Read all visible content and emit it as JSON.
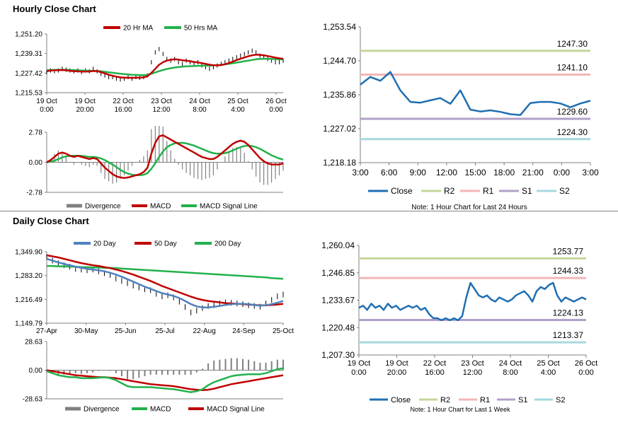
{
  "sections": {
    "hourly_title": "Hourly Close Chart",
    "daily_title": "Daily Close Chart"
  },
  "chart_data": [
    {
      "id": "hourly_price",
      "type": "line",
      "legend": [
        "20 Hr MA",
        "50 Hrs MA"
      ],
      "colors": {
        "ma20": "#c00000",
        "ma50": "#22b14c",
        "price": "#000000"
      },
      "y_ticks": [
        "1,251.20",
        "1,239.31",
        "1,227.42",
        "1,215.53"
      ],
      "ylim": [
        1215.53,
        1251.2
      ],
      "x_ticks": [
        [
          "19 Oct",
          "0:00"
        ],
        [
          "19 Oct",
          "20:00"
        ],
        [
          "22 Oct",
          "16:00"
        ],
        [
          "23 Oct",
          "12:00"
        ],
        [
          "24 Oct",
          "8:00"
        ],
        [
          "25 Oct",
          "4:00"
        ],
        [
          "26 Oct",
          "0:00"
        ]
      ],
      "price": [
        1228,
        1229,
        1228.5,
        1229,
        1230,
        1229.5,
        1229,
        1228.5,
        1229,
        1228,
        1229,
        1228.5,
        1230,
        1228.5,
        1227,
        1226,
        1225,
        1225,
        1224,
        1223.5,
        1224,
        1225,
        1224,
        1225,
        1224.5,
        1225,
        1226,
        1234,
        1240,
        1242,
        1239,
        1236,
        1235,
        1236,
        1234,
        1233,
        1235,
        1234,
        1233,
        1234,
        1232,
        1231,
        1230,
        1231,
        1232,
        1233,
        1234,
        1235,
        1236,
        1237,
        1238,
        1239,
        1240,
        1241,
        1240,
        1238,
        1237,
        1236,
        1235,
        1234,
        1234,
        1235
      ],
      "ma20": [
        1228.5,
        1229,
        1229.2,
        1229.2,
        1229.3,
        1229.1,
        1228.8,
        1228.6,
        1228.5,
        1228.3,
        1228.4,
        1228.4,
        1228.7,
        1228.6,
        1228,
        1227.2,
        1226.4,
        1225.8,
        1225.2,
        1224.8,
        1224.6,
        1224.6,
        1224.5,
        1224.6,
        1224.6,
        1224.8,
        1225.5,
        1227.5,
        1230,
        1232.5,
        1234,
        1235,
        1235.5,
        1235.8,
        1235.6,
        1235.2,
        1235,
        1234.6,
        1234.2,
        1233.9,
        1233.5,
        1233,
        1232.5,
        1232.2,
        1232.1,
        1232.3,
        1232.8,
        1233.5,
        1234.4,
        1235.3,
        1236.1,
        1236.9,
        1237.6,
        1238.2,
        1238.6,
        1238.5,
        1238.2,
        1237.8,
        1237.3,
        1236.8,
        1236.4,
        1236.1
      ],
      "ma50": [
        1229.2,
        1229.3,
        1229.3,
        1229.4,
        1229.4,
        1229.4,
        1229.3,
        1229.2,
        1229.1,
        1229,
        1228.9,
        1228.8,
        1228.8,
        1228.7,
        1228.5,
        1228.2,
        1227.9,
        1227.6,
        1227.3,
        1227,
        1226.8,
        1226.6,
        1226.4,
        1226.3,
        1226.2,
        1226.2,
        1226.4,
        1227,
        1227.8,
        1228.6,
        1229.3,
        1229.9,
        1230.4,
        1230.8,
        1231.1,
        1231.3,
        1231.5,
        1231.6,
        1231.7,
        1231.8,
        1231.9,
        1232,
        1232,
        1232.1,
        1232.2,
        1232.4,
        1232.7,
        1233,
        1233.4,
        1233.8,
        1234.2,
        1234.6,
        1235,
        1235.4,
        1235.8,
        1236,
        1236.1,
        1236.1,
        1236,
        1235.9,
        1235.8,
        1235.7
      ]
    },
    {
      "id": "hourly_macd",
      "type": "line",
      "legend": [
        "Divergence",
        "MACD",
        "MACD Signal Line"
      ],
      "colors": {
        "divergence": "#808080",
        "macd": "#c00000",
        "signal": "#22b14c"
      },
      "y_ticks": [
        "2.78",
        "0.00",
        "-2.78"
      ],
      "ylim": [
        -2.78,
        2.78
      ],
      "macd": [
        0,
        0.2,
        0.5,
        0.8,
        0.9,
        0.8,
        0.6,
        0.5,
        0.6,
        0.5,
        0.4,
        0.3,
        0.4,
        0.3,
        -0.1,
        -0.5,
        -0.8,
        -1.1,
        -1.3,
        -1.4,
        -1.45,
        -1.4,
        -1.3,
        -1.2,
        -1.1,
        -0.9,
        -0.5,
        0.8,
        1.8,
        2.4,
        2.5,
        2.3,
        2.1,
        1.9,
        1.7,
        1.5,
        1.3,
        1.1,
        0.9,
        0.7,
        0.5,
        0.4,
        0.3,
        0.3,
        0.5,
        0.8,
        1.1,
        1.4,
        1.7,
        1.9,
        2.0,
        1.9,
        1.6,
        1.2,
        0.8,
        0.4,
        0.1,
        -0.1,
        -0.2,
        -0.2,
        -0.2,
        -0.1
      ],
      "signal": [
        0,
        0.05,
        0.15,
        0.3,
        0.45,
        0.55,
        0.6,
        0.6,
        0.6,
        0.6,
        0.55,
        0.5,
        0.5,
        0.45,
        0.35,
        0.2,
        0,
        -0.2,
        -0.45,
        -0.7,
        -0.9,
        -1.05,
        -1.15,
        -1.2,
        -1.2,
        -1.15,
        -1.0,
        -0.6,
        -0.1,
        0.5,
        1.0,
        1.4,
        1.6,
        1.75,
        1.8,
        1.8,
        1.75,
        1.65,
        1.55,
        1.4,
        1.25,
        1.1,
        0.95,
        0.85,
        0.8,
        0.8,
        0.85,
        0.95,
        1.1,
        1.25,
        1.4,
        1.5,
        1.55,
        1.5,
        1.4,
        1.25,
        1.05,
        0.85,
        0.65,
        0.5,
        0.35,
        0.25
      ]
    },
    {
      "id": "hourly_levels",
      "type": "line",
      "title_note": "Note: 1 Hour Chart for Last 24 Hours",
      "legend": [
        "Close",
        "R2",
        "R1",
        "S1",
        "S2"
      ],
      "colors": {
        "close": "#1f6fb2",
        "r2": "#c4d79b",
        "r1": "#f2b6b6",
        "s1": "#b1a0c7",
        "s2": "#a7d8de"
      },
      "y_ticks": [
        "1,253.54",
        "1,244.70",
        "1,235.86",
        "1,227.02",
        "1,218.18"
      ],
      "ylim": [
        1218.18,
        1253.54
      ],
      "x_ticks": [
        "3:00",
        "6:00",
        "9:00",
        "12:00",
        "15:00",
        "18:00",
        "21:00",
        "0:00",
        "3:00"
      ],
      "levels": {
        "r2": 1247.3,
        "r1": 1241.1,
        "s1": 1229.6,
        "s2": 1224.3
      },
      "level_labels": {
        "r2": "1247.30",
        "r1": "1241.10",
        "s1": "1229.60",
        "s2": "1224.30"
      },
      "close": [
        1238.5,
        1240.5,
        1239.5,
        1241.8,
        1237.0,
        1234.0,
        1233.8,
        1234.4,
        1235.0,
        1233.5,
        1237.0,
        1232.0,
        1231.5,
        1231.8,
        1231.4,
        1230.8,
        1230.6,
        1233.7,
        1234.0,
        1234.0,
        1233.6,
        1232.6,
        1233.6,
        1234.3
      ]
    },
    {
      "id": "daily_price",
      "type": "line",
      "legend": [
        "20 Day",
        "50 Day",
        "200 Day"
      ],
      "colors": {
        "d20": "#4f81bd",
        "d50": "#c00000",
        "d200": "#22b14c",
        "price": "#000000"
      },
      "y_ticks": [
        "1,349.90",
        "1,283.20",
        "1,216.49",
        "1,149.79"
      ],
      "ylim": [
        1149.79,
        1349.9
      ],
      "x_ticks": [
        "27-Apr",
        "30-May",
        "25-Jun",
        "25-Jul",
        "22-Aug",
        "24-Sep",
        "25-Oct"
      ],
      "price": [
        1335,
        1325,
        1318,
        1312,
        1308,
        1302,
        1300,
        1298,
        1300,
        1295,
        1290,
        1285,
        1275,
        1268,
        1262,
        1255,
        1250,
        1245,
        1242,
        1232,
        1225,
        1228,
        1222,
        1210,
        1195,
        1180,
        1185,
        1192,
        1198,
        1200,
        1205,
        1208,
        1207,
        1205,
        1203,
        1200,
        1198,
        1196,
        1205,
        1215,
        1225,
        1230
      ],
      "d20": [
        1330,
        1325,
        1320,
        1316,
        1312,
        1308,
        1305,
        1302,
        1300,
        1298,
        1295,
        1291,
        1286,
        1280,
        1273,
        1266,
        1259,
        1252,
        1246,
        1240,
        1234,
        1230,
        1226,
        1220,
        1212,
        1203,
        1197,
        1194,
        1194,
        1196,
        1198,
        1201,
        1203,
        1204,
        1204,
        1203,
        1201,
        1199,
        1200,
        1203,
        1207,
        1212
      ],
      "d50": [
        1340,
        1337,
        1334,
        1330,
        1326,
        1322,
        1318,
        1315,
        1312,
        1310,
        1307,
        1304,
        1300,
        1296,
        1291,
        1286,
        1280,
        1274,
        1268,
        1261,
        1254,
        1248,
        1242,
        1236,
        1230,
        1224,
        1219,
        1215,
        1212,
        1210,
        1208,
        1206,
        1205,
        1204,
        1203,
        1202,
        1201,
        1200,
        1200,
        1201,
        1202,
        1204
      ],
      "d200": [
        1310,
        1310,
        1309,
        1309,
        1308,
        1308,
        1307,
        1307,
        1306,
        1306,
        1305,
        1305,
        1304,
        1303,
        1302,
        1301,
        1300,
        1299,
        1298,
        1297,
        1296,
        1295,
        1294,
        1293,
        1292,
        1291,
        1290,
        1289,
        1288,
        1287,
        1286,
        1285,
        1284,
        1283,
        1282,
        1281,
        1280,
        1279,
        1278,
        1276,
        1275,
        1274
      ]
    },
    {
      "id": "daily_macd",
      "type": "line",
      "legend": [
        "Divergence",
        "MACD",
        "MACD Signal Line"
      ],
      "colors": {
        "divergence": "#808080",
        "macd": "#22b14c",
        "signal": "#c00000"
      },
      "y_ticks": [
        "28.63",
        "0.00",
        "-28.63"
      ],
      "ylim": [
        -28.63,
        28.63
      ],
      "macd": [
        -1,
        -3,
        -5,
        -6,
        -7,
        -7,
        -8,
        -8,
        -8,
        -7.5,
        -7,
        -8,
        -10,
        -13,
        -16,
        -17,
        -17,
        -17,
        -17,
        -17.5,
        -18,
        -18.5,
        -19,
        -20,
        -21,
        -22,
        -21,
        -19,
        -15,
        -12,
        -10,
        -8,
        -6,
        -5,
        -4.5,
        -4,
        -4,
        -4,
        -3,
        -1,
        1,
        2
      ],
      "signal": [
        0,
        -1,
        -2,
        -3,
        -4,
        -5,
        -5.5,
        -6,
        -6.5,
        -7,
        -7,
        -7.5,
        -8,
        -9,
        -10,
        -11,
        -12,
        -13,
        -14,
        -14.5,
        -15,
        -15.5,
        -16,
        -17,
        -18,
        -19,
        -19.5,
        -20,
        -19.5,
        -18.5,
        -17,
        -15.5,
        -14,
        -13,
        -12,
        -11,
        -10,
        -9,
        -8,
        -7,
        -6,
        -5
      ]
    },
    {
      "id": "daily_levels",
      "type": "line",
      "title_note": "Note: 1 Hour Chart for Last 1 Week",
      "legend": [
        "Close",
        "R2",
        "R1",
        "S1",
        "S2"
      ],
      "colors": {
        "close": "#1f6fb2",
        "r2": "#c4d79b",
        "r1": "#f2b6b6",
        "s1": "#b1a0c7",
        "s2": "#a7d8de"
      },
      "y_ticks": [
        "1,260.04",
        "1,246.85",
        "1,233.67",
        "1,220.48",
        "1,207.30"
      ],
      "ylim": [
        1207.3,
        1260.04
      ],
      "x_ticks": [
        [
          "19 Oct",
          "0:00"
        ],
        [
          "19 Oct",
          "20:00"
        ],
        [
          "22 Oct",
          "16:00"
        ],
        [
          "23 Oct",
          "12:00"
        ],
        [
          "24 Oct",
          "8:00"
        ],
        [
          "25 Oct",
          "4:00"
        ],
        [
          "26 Oct",
          "0:00"
        ]
      ],
      "levels": {
        "r2": 1253.77,
        "r1": 1244.33,
        "s1": 1224.13,
        "s2": 1213.37
      },
      "level_labels": {
        "r2": "1253.77",
        "r1": "1244.33",
        "s1": "1224.13",
        "s2": "1213.37"
      },
      "close": [
        1230,
        1231,
        1229,
        1232,
        1230,
        1231,
        1229,
        1232,
        1230,
        1231,
        1229,
        1230,
        1231,
        1230,
        1231,
        1229,
        1230,
        1227,
        1225,
        1225,
        1224,
        1225,
        1224,
        1225,
        1224,
        1226,
        1235,
        1242,
        1239,
        1236,
        1235,
        1236,
        1234,
        1233,
        1235,
        1234,
        1233,
        1234,
        1236,
        1237,
        1238,
        1236,
        1233,
        1238,
        1240,
        1239,
        1241,
        1242,
        1236,
        1233,
        1235,
        1234,
        1233,
        1234,
        1235,
        1234
      ]
    }
  ]
}
